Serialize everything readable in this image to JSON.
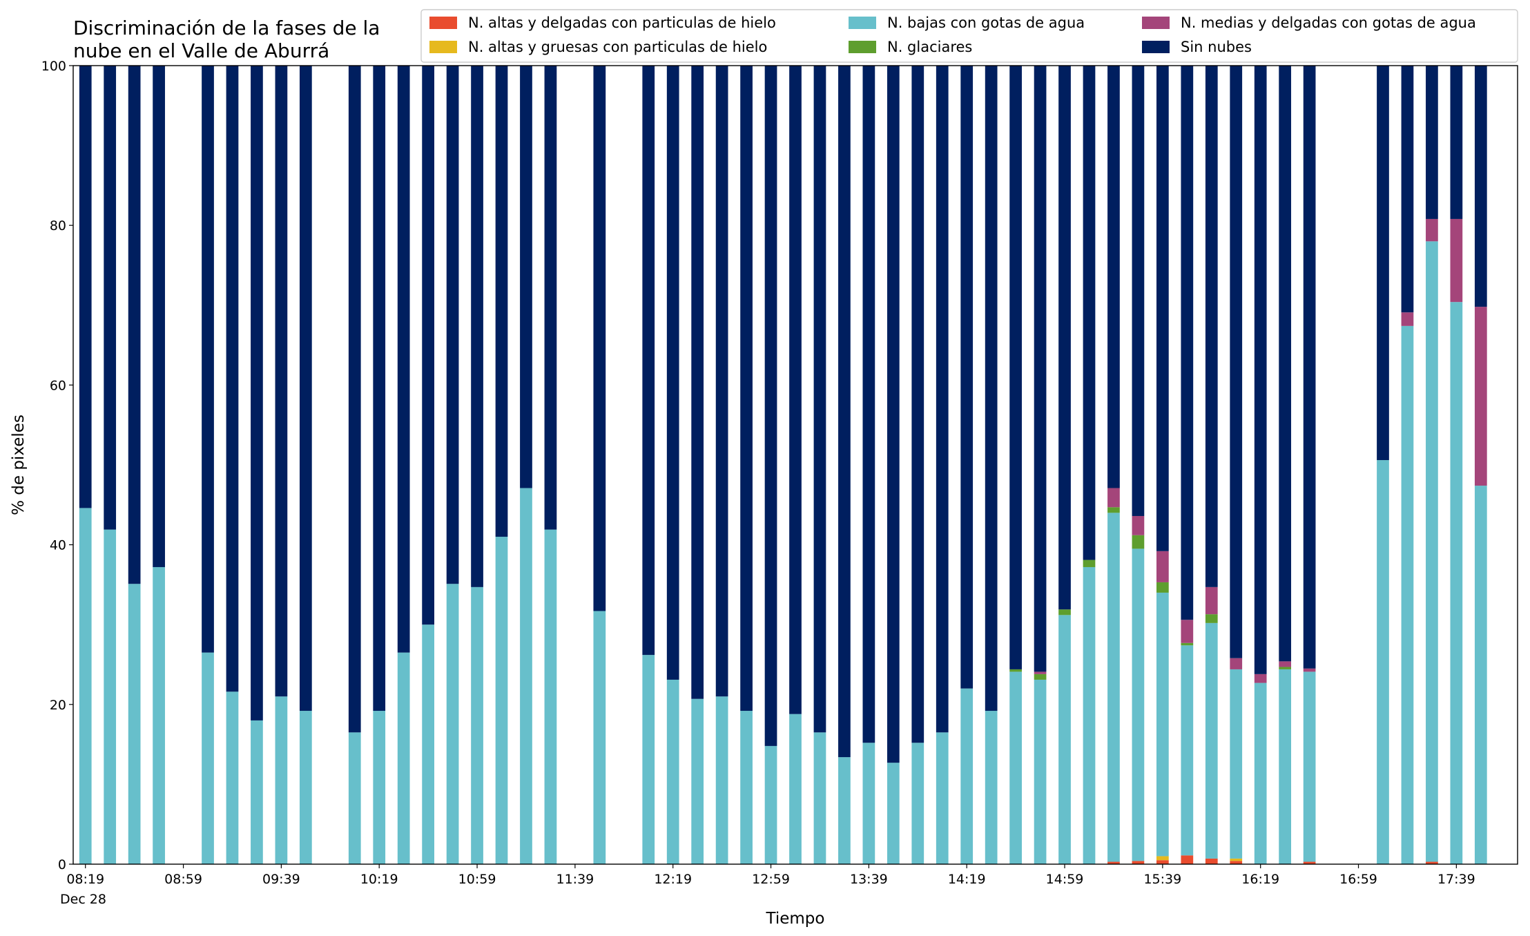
{
  "chart_data": {
    "type": "stacked_bar",
    "title_lines": [
      "Discriminación de la fases de la",
      "nube en el Valle de Aburrá"
    ],
    "xlabel": "Tiempo",
    "ylabel": "% de pixeles",
    "date_label": "Dec 28",
    "x": [
      "08:19",
      "08:29",
      "08:39",
      "08:49",
      "09:09",
      "09:19",
      "09:29",
      "09:39",
      "09:49",
      "10:09",
      "10:19",
      "10:29",
      "10:39",
      "10:49",
      "10:59",
      "11:09",
      "11:19",
      "11:29",
      "11:49",
      "12:09",
      "12:19",
      "12:29",
      "12:39",
      "12:49",
      "12:59",
      "13:09",
      "13:19",
      "13:29",
      "13:39",
      "13:49",
      "13:59",
      "14:09",
      "14:19",
      "14:29",
      "14:39",
      "14:49",
      "14:59",
      "15:09",
      "15:19",
      "15:29",
      "15:39",
      "15:49",
      "15:59",
      "16:09",
      "16:19",
      "16:29",
      "16:39",
      "17:09",
      "17:19",
      "17:29",
      "17:39",
      "17:49"
    ],
    "xlim": [
      "08:14",
      "18:04"
    ],
    "xticks": [
      "08:19",
      "08:59",
      "09:39",
      "10:19",
      "10:59",
      "11:39",
      "12:19",
      "12:59",
      "13:39",
      "14:19",
      "14:59",
      "15:39",
      "16:19",
      "16:59",
      "17:39"
    ],
    "ylim": [
      0,
      100
    ],
    "yticks": [
      0,
      20,
      40,
      60,
      80,
      100
    ],
    "series": [
      {
        "name": "N. altas y delgadas con particulas de hielo",
        "color": "#e94c2e",
        "values": [
          0,
          0,
          0,
          0,
          0,
          0,
          0,
          0,
          0,
          0,
          0,
          0,
          0,
          0,
          0,
          0,
          0,
          0,
          0,
          0,
          0,
          0,
          0,
          0,
          0,
          0,
          0,
          0,
          0,
          0,
          0,
          0,
          0,
          0,
          0,
          0,
          0,
          0,
          0.3,
          0.4,
          0.5,
          1.1,
          0.7,
          0.4,
          0,
          0,
          0.3,
          0,
          0,
          0.3,
          0,
          0
        ]
      },
      {
        "name": "N. altas y gruesas con particulas de hielo",
        "color": "#e6b91e",
        "values": [
          0,
          0,
          0,
          0,
          0,
          0,
          0,
          0,
          0,
          0,
          0,
          0,
          0,
          0,
          0,
          0,
          0,
          0,
          0,
          0,
          0,
          0,
          0,
          0,
          0,
          0,
          0,
          0,
          0,
          0,
          0,
          0,
          0,
          0,
          0,
          0,
          0,
          0,
          0,
          0,
          0.5,
          0,
          0,
          0.3,
          0,
          0,
          0,
          0,
          0,
          0,
          0,
          0
        ]
      },
      {
        "name": "N. bajas con gotas de agua",
        "color": "#67bfcb",
        "values": [
          44.6,
          41.9,
          35.1,
          37.2,
          26.5,
          21.6,
          18.0,
          21.0,
          19.2,
          16.5,
          19.2,
          26.5,
          30.0,
          35.1,
          34.7,
          41.0,
          47.1,
          41.9,
          31.7,
          26.2,
          23.1,
          20.7,
          21.0,
          19.2,
          14.8,
          18.8,
          16.5,
          13.4,
          15.2,
          12.7,
          15.2,
          16.5,
          22.0,
          19.2,
          24.1,
          23.1,
          31.2,
          37.2,
          43.7,
          39.1,
          33.0,
          26.3,
          29.5,
          23.7,
          22.7,
          24.4,
          23.8,
          50.6,
          67.4,
          77.7,
          70.4,
          47.4
        ]
      },
      {
        "name": "N. glaciares",
        "color": "#5e9e2e",
        "values": [
          0,
          0,
          0,
          0,
          0,
          0,
          0,
          0,
          0,
          0,
          0,
          0,
          0,
          0,
          0,
          0,
          0,
          0,
          0,
          0,
          0,
          0,
          0,
          0,
          0,
          0,
          0,
          0,
          0,
          0,
          0,
          0,
          0,
          0,
          0.3,
          0.7,
          0.7,
          0.9,
          0.7,
          1.7,
          1.3,
          0.3,
          1.1,
          0,
          0,
          0.3,
          0,
          0,
          0,
          0,
          0,
          0
        ]
      },
      {
        "name": "N. medias y delgadas con gotas de agua",
        "color": "#a4457a",
        "values": [
          0,
          0,
          0,
          0,
          0,
          0,
          0,
          0,
          0,
          0,
          0,
          0,
          0,
          0,
          0,
          0,
          0,
          0,
          0,
          0,
          0,
          0,
          0,
          0,
          0,
          0,
          0,
          0,
          0,
          0,
          0,
          0,
          0,
          0,
          0,
          0.3,
          0,
          0,
          2.4,
          2.4,
          3.9,
          2.9,
          3.4,
          1.4,
          1.1,
          0.7,
          0.4,
          0,
          1.7,
          2.8,
          10.4,
          22.4
        ]
      },
      {
        "name": "Sin nubes",
        "color": "#001f5f",
        "values": [
          55.4,
          58.1,
          64.9,
          62.8,
          73.5,
          78.4,
          82.0,
          79.0,
          80.8,
          83.5,
          80.8,
          73.5,
          70.0,
          64.9,
          65.3,
          59.0,
          52.9,
          58.1,
          68.3,
          73.8,
          76.9,
          79.3,
          79.0,
          80.8,
          85.2,
          81.2,
          83.5,
          86.6,
          84.8,
          87.3,
          84.8,
          83.5,
          78.0,
          80.8,
          75.6,
          75.9,
          68.1,
          61.9,
          52.9,
          56.4,
          60.8,
          69.4,
          65.3,
          74.2,
          76.2,
          74.6,
          75.5,
          49.4,
          30.9,
          19.2,
          19.2,
          30.2
        ]
      }
    ]
  }
}
